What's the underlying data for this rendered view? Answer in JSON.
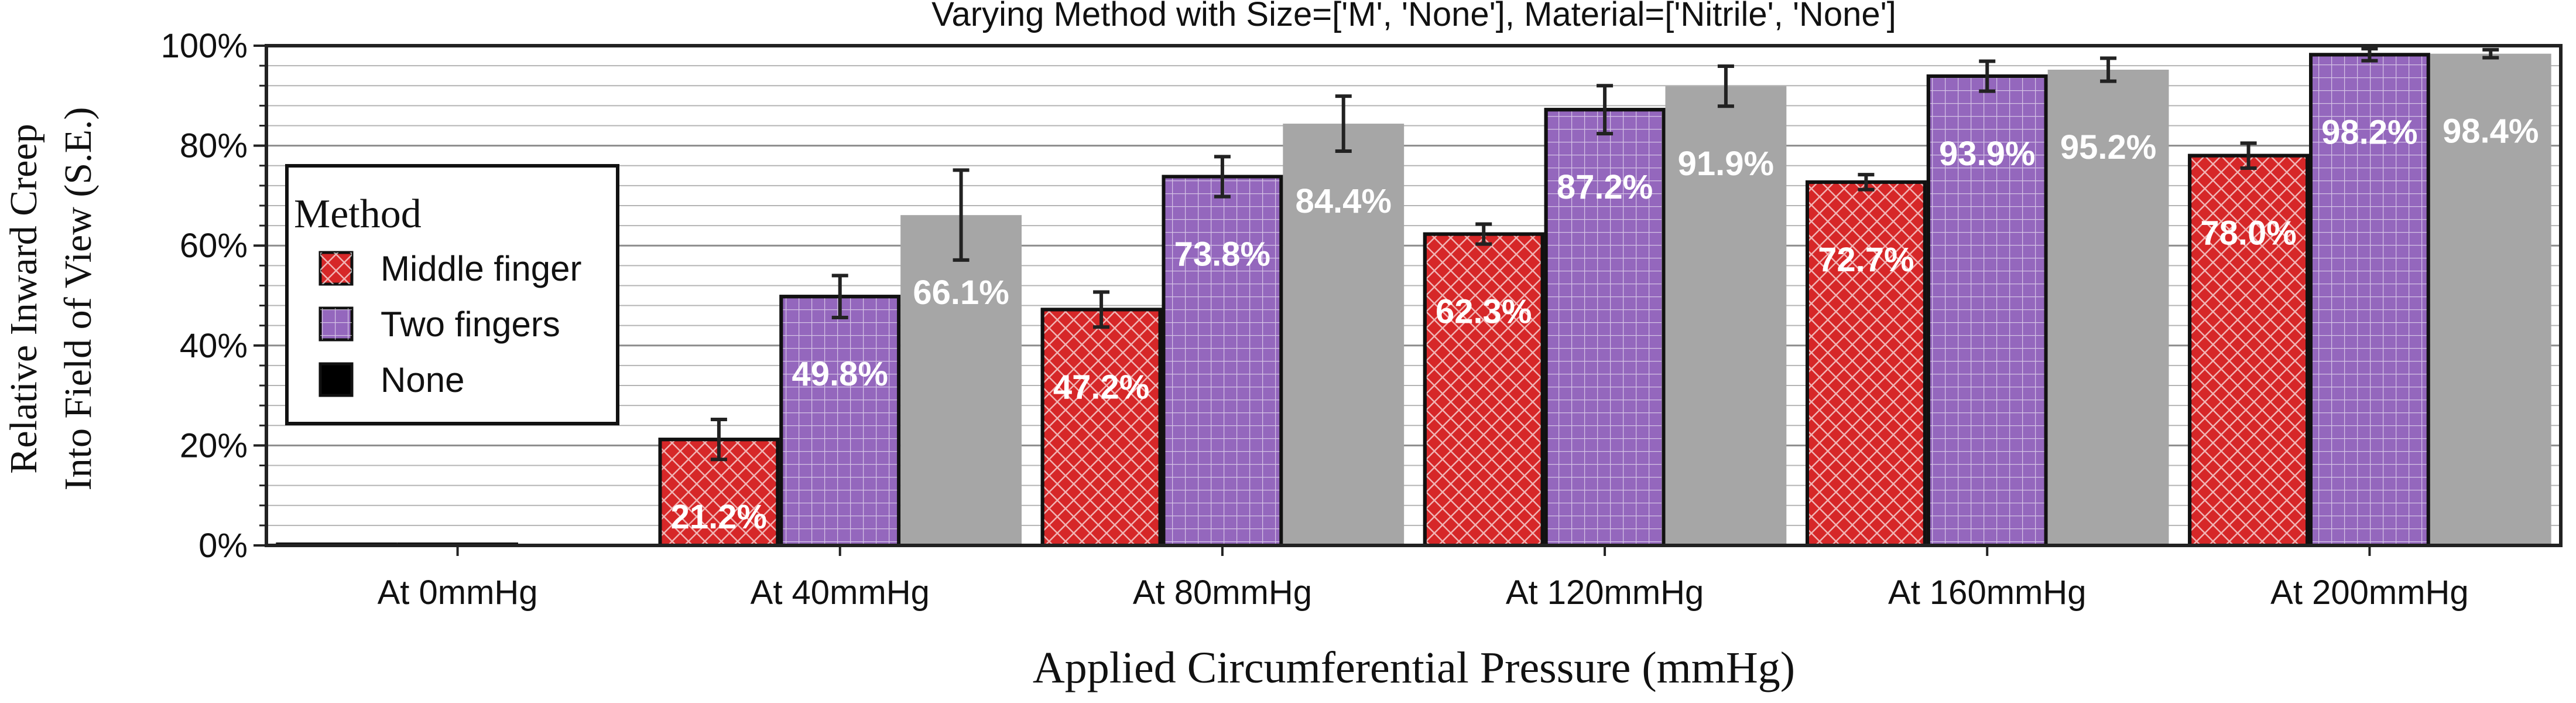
{
  "chart_data": {
    "type": "bar",
    "title": "Varying Method with Size=['M', 'None'], Material=['Nitrile', 'None']",
    "xlabel": "Applied Circumferential Pressure (mmHg)",
    "ylabel_lines": [
      "Relative Inward Creep",
      "Into Field of View (S.E.)"
    ],
    "categories": [
      "At 0mmHg",
      "At 40mmHg",
      "At 80mmHg",
      "At 120mmHg",
      "At 160mmHg",
      "At 200mmHg"
    ],
    "ylim": [
      0,
      100
    ],
    "yticks": [
      0,
      20,
      40,
      60,
      80,
      100
    ],
    "ytick_labels": [
      "0%",
      "20%",
      "40%",
      "60%",
      "80%",
      "100%"
    ],
    "grid": true,
    "legend": {
      "title": "Method",
      "position": "upper-left",
      "entries": [
        "Middle finger",
        "Two fingers",
        "None"
      ]
    },
    "series": [
      {
        "name": "Middle finger",
        "color": "#d62728",
        "hatch": "crosshatch-diagonal",
        "values": [
          0,
          21.2,
          47.2,
          62.3,
          72.7,
          78.0
        ],
        "errors": [
          0,
          4.0,
          3.5,
          2.0,
          1.5,
          2.5
        ],
        "labels": [
          "",
          "21.2%",
          "47.2%",
          "62.3%",
          "72.7%",
          "78.0%"
        ]
      },
      {
        "name": "Two fingers",
        "color": "#9467bd",
        "hatch": "grid",
        "values": [
          0,
          49.8,
          73.8,
          87.2,
          93.9,
          98.2
        ],
        "errors": [
          0,
          4.2,
          4.0,
          4.8,
          3.0,
          1.2
        ],
        "labels": [
          "",
          "49.8%",
          "73.8%",
          "87.2%",
          "93.9%",
          "98.2%"
        ]
      },
      {
        "name": "None",
        "color": "#a6a6a6",
        "legend_color": "#000000",
        "hatch": "none",
        "values": [
          0,
          66.1,
          84.4,
          91.9,
          95.2,
          98.4
        ],
        "errors": [
          0,
          9.0,
          5.5,
          4.0,
          2.3,
          0.8
        ],
        "labels": [
          "",
          "66.1%",
          "84.4%",
          "91.9%",
          "95.2%",
          "98.4%"
        ]
      }
    ]
  }
}
